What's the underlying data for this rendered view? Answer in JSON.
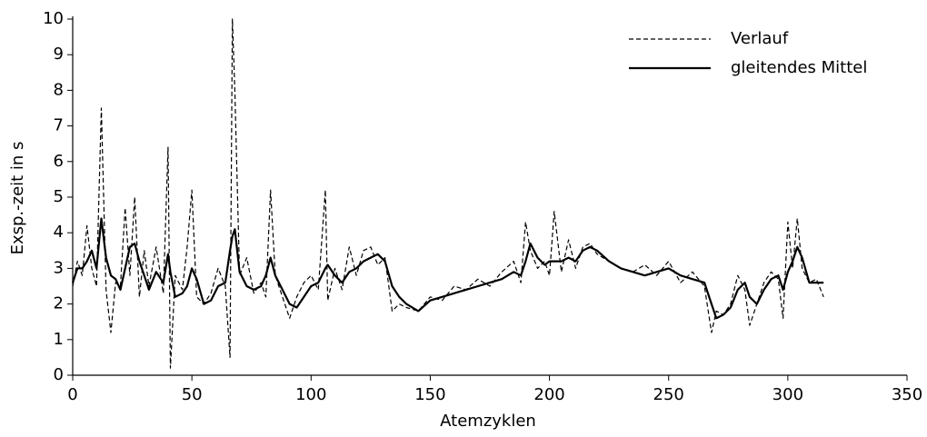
{
  "chart_data": {
    "type": "line",
    "xlabel": "Atemzyklen",
    "ylabel": "Exsp.-zeit in s",
    "x": [
      0,
      2,
      4,
      6,
      8,
      10,
      12,
      14,
      16,
      18,
      20,
      22,
      24,
      26,
      28,
      30,
      32,
      35,
      38,
      40,
      41,
      43,
      46,
      48,
      50,
      52,
      55,
      58,
      61,
      64,
      66,
      67,
      68,
      70,
      73,
      76,
      79,
      81,
      83,
      85,
      88,
      91,
      94,
      97,
      100,
      103,
      106,
      107,
      110,
      113,
      116,
      119,
      122,
      125,
      128,
      131,
      134,
      137,
      140,
      145,
      150,
      155,
      160,
      165,
      170,
      175,
      180,
      185,
      188,
      190,
      192,
      195,
      198,
      200,
      202,
      205,
      208,
      211,
      214,
      217,
      220,
      225,
      230,
      235,
      240,
      245,
      250,
      255,
      260,
      265,
      268,
      270,
      273,
      276,
      279,
      282,
      284,
      287,
      290,
      293,
      296,
      298,
      300,
      302,
      304,
      306,
      309,
      312,
      315
    ],
    "series": [
      {
        "name": "Verlauf",
        "color": "#000000",
        "dashed": true,
        "values": [
          2.5,
          3.2,
          2.8,
          4.2,
          3.0,
          2.5,
          7.5,
          2.4,
          1.2,
          2.6,
          2.5,
          4.7,
          2.8,
          5.0,
          2.2,
          3.5,
          2.5,
          3.6,
          2.3,
          6.4,
          0.2,
          2.8,
          2.4,
          3.6,
          5.2,
          2.2,
          2.0,
          2.3,
          3.0,
          2.5,
          0.5,
          10.0,
          8.0,
          2.8,
          3.3,
          2.3,
          2.6,
          2.2,
          5.2,
          2.8,
          2.2,
          1.6,
          2.2,
          2.6,
          2.8,
          2.4,
          5.2,
          2.1,
          3.0,
          2.4,
          3.6,
          2.8,
          3.5,
          3.6,
          3.1,
          3.3,
          1.8,
          2.0,
          1.9,
          1.8,
          2.2,
          2.1,
          2.5,
          2.4,
          2.7,
          2.5,
          2.9,
          3.2,
          2.6,
          4.3,
          3.5,
          3.0,
          3.2,
          2.8,
          4.6,
          2.9,
          3.8,
          3.0,
          3.6,
          3.7,
          3.4,
          3.2,
          3.0,
          2.9,
          3.1,
          2.8,
          3.2,
          2.6,
          2.9,
          2.5,
          1.2,
          1.8,
          1.7,
          2.0,
          2.8,
          2.4,
          1.4,
          2.0,
          2.6,
          2.9,
          2.7,
          1.6,
          4.3,
          3.0,
          4.4,
          3.0,
          2.6,
          2.7,
          2.2
        ]
      },
      {
        "name": "gleitendes Mittel",
        "color": "#000000",
        "dashed": false,
        "values": [
          2.6,
          3.0,
          3.0,
          3.2,
          3.5,
          3.0,
          4.4,
          3.3,
          2.8,
          2.7,
          2.4,
          3.0,
          3.6,
          3.7,
          3.2,
          2.8,
          2.4,
          2.9,
          2.6,
          3.4,
          2.9,
          2.2,
          2.3,
          2.5,
          3.0,
          2.7,
          2.0,
          2.1,
          2.5,
          2.6,
          3.5,
          3.9,
          4.1,
          2.9,
          2.5,
          2.4,
          2.5,
          2.8,
          3.3,
          2.8,
          2.4,
          2.0,
          1.9,
          2.2,
          2.5,
          2.6,
          3.0,
          3.1,
          2.8,
          2.6,
          2.9,
          3.0,
          3.2,
          3.3,
          3.4,
          3.2,
          2.5,
          2.2,
          2.0,
          1.8,
          2.1,
          2.2,
          2.3,
          2.4,
          2.5,
          2.6,
          2.7,
          2.9,
          2.8,
          3.2,
          3.7,
          3.3,
          3.1,
          3.2,
          3.2,
          3.2,
          3.3,
          3.2,
          3.5,
          3.6,
          3.5,
          3.2,
          3.0,
          2.9,
          2.8,
          2.9,
          3.0,
          2.8,
          2.7,
          2.6,
          2.0,
          1.6,
          1.7,
          1.9,
          2.4,
          2.6,
          2.2,
          2.0,
          2.4,
          2.7,
          2.8,
          2.4,
          2.9,
          3.2,
          3.6,
          3.3,
          2.6,
          2.6,
          2.6
        ]
      }
    ],
    "xlim": [
      0,
      350
    ],
    "xticks": [
      0,
      50,
      100,
      150,
      200,
      250,
      300,
      350
    ],
    "ylim": [
      0,
      10
    ],
    "yticks": [
      0,
      1,
      2,
      3,
      4,
      5,
      6,
      7,
      8,
      9,
      10
    ],
    "legend": "upper right"
  }
}
